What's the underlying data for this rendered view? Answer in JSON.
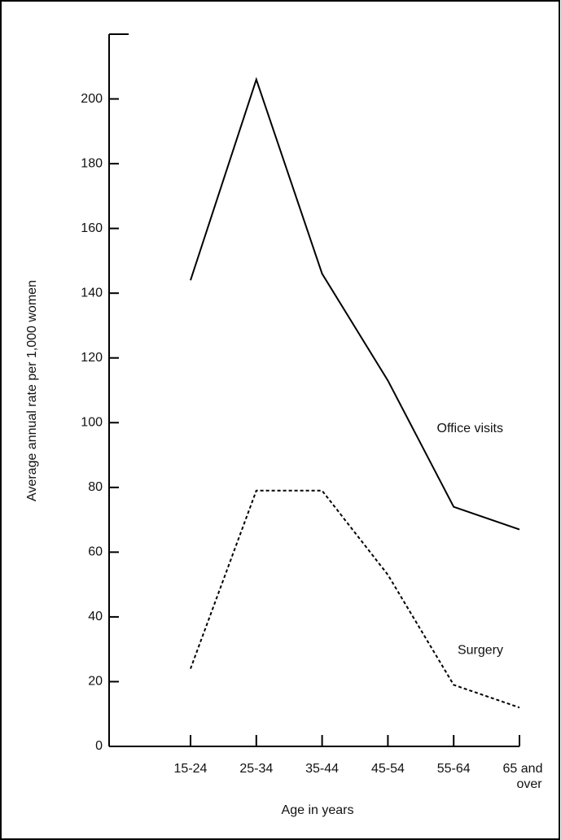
{
  "chart_data": {
    "type": "line",
    "ylabel": "Average annual rate per 1,000 women",
    "xlabel": "Age in years",
    "categories": [
      "15-24",
      "25-34",
      "35-44",
      "45-54",
      "55-64",
      "65 and over"
    ],
    "series": [
      {
        "name": "Office visits",
        "color": "#000000",
        "style": "solid",
        "values": [
          144,
          206,
          146,
          113,
          74,
          67
        ]
      },
      {
        "name": "Surgery",
        "color": "#000000",
        "style": "dashed",
        "values": [
          24,
          79,
          79,
          53,
          19,
          12
        ]
      }
    ],
    "ylim": [
      0,
      220
    ],
    "yticks": [
      0,
      20,
      40,
      60,
      80,
      100,
      120,
      140,
      160,
      180,
      200
    ]
  }
}
